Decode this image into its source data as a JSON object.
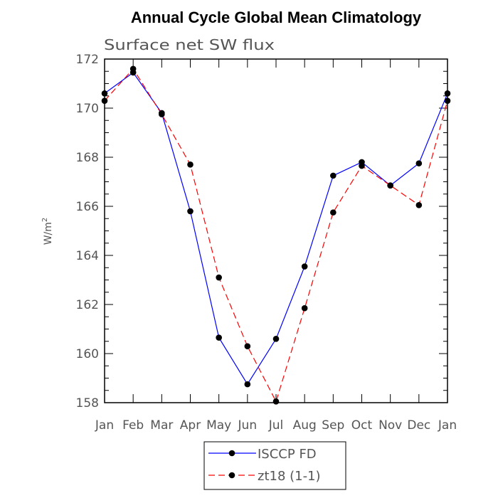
{
  "chart_data": {
    "type": "line",
    "title": "Annual Cycle Global Mean Climatology",
    "subtitle": "Surface net SW flux",
    "xlabel": "",
    "ylabel": "W/m",
    "ylabel_sup": "2",
    "categories": [
      "Jan",
      "Feb",
      "Mar",
      "Apr",
      "May",
      "Jun",
      "Jul",
      "Aug",
      "Sep",
      "Oct",
      "Nov",
      "Dec",
      "Jan"
    ],
    "ylim": [
      158,
      172
    ],
    "yticks": [
      "158",
      "160",
      "162",
      "164",
      "166",
      "168",
      "170",
      "172"
    ],
    "series": [
      {
        "name": "ISCCP FD",
        "color": "#0000ff",
        "dash": "solid",
        "values": [
          170.6,
          171.45,
          169.8,
          165.8,
          160.65,
          158.75,
          160.6,
          163.55,
          167.25,
          167.8,
          166.85,
          167.75,
          170.6
        ]
      },
      {
        "name": "zt18 (1-1)",
        "color": "#ff0000",
        "dash": "dashed",
        "values": [
          170.3,
          171.6,
          169.75,
          167.7,
          163.1,
          160.3,
          158.05,
          161.85,
          165.75,
          167.65,
          166.85,
          166.05,
          170.3
        ]
      }
    ]
  }
}
